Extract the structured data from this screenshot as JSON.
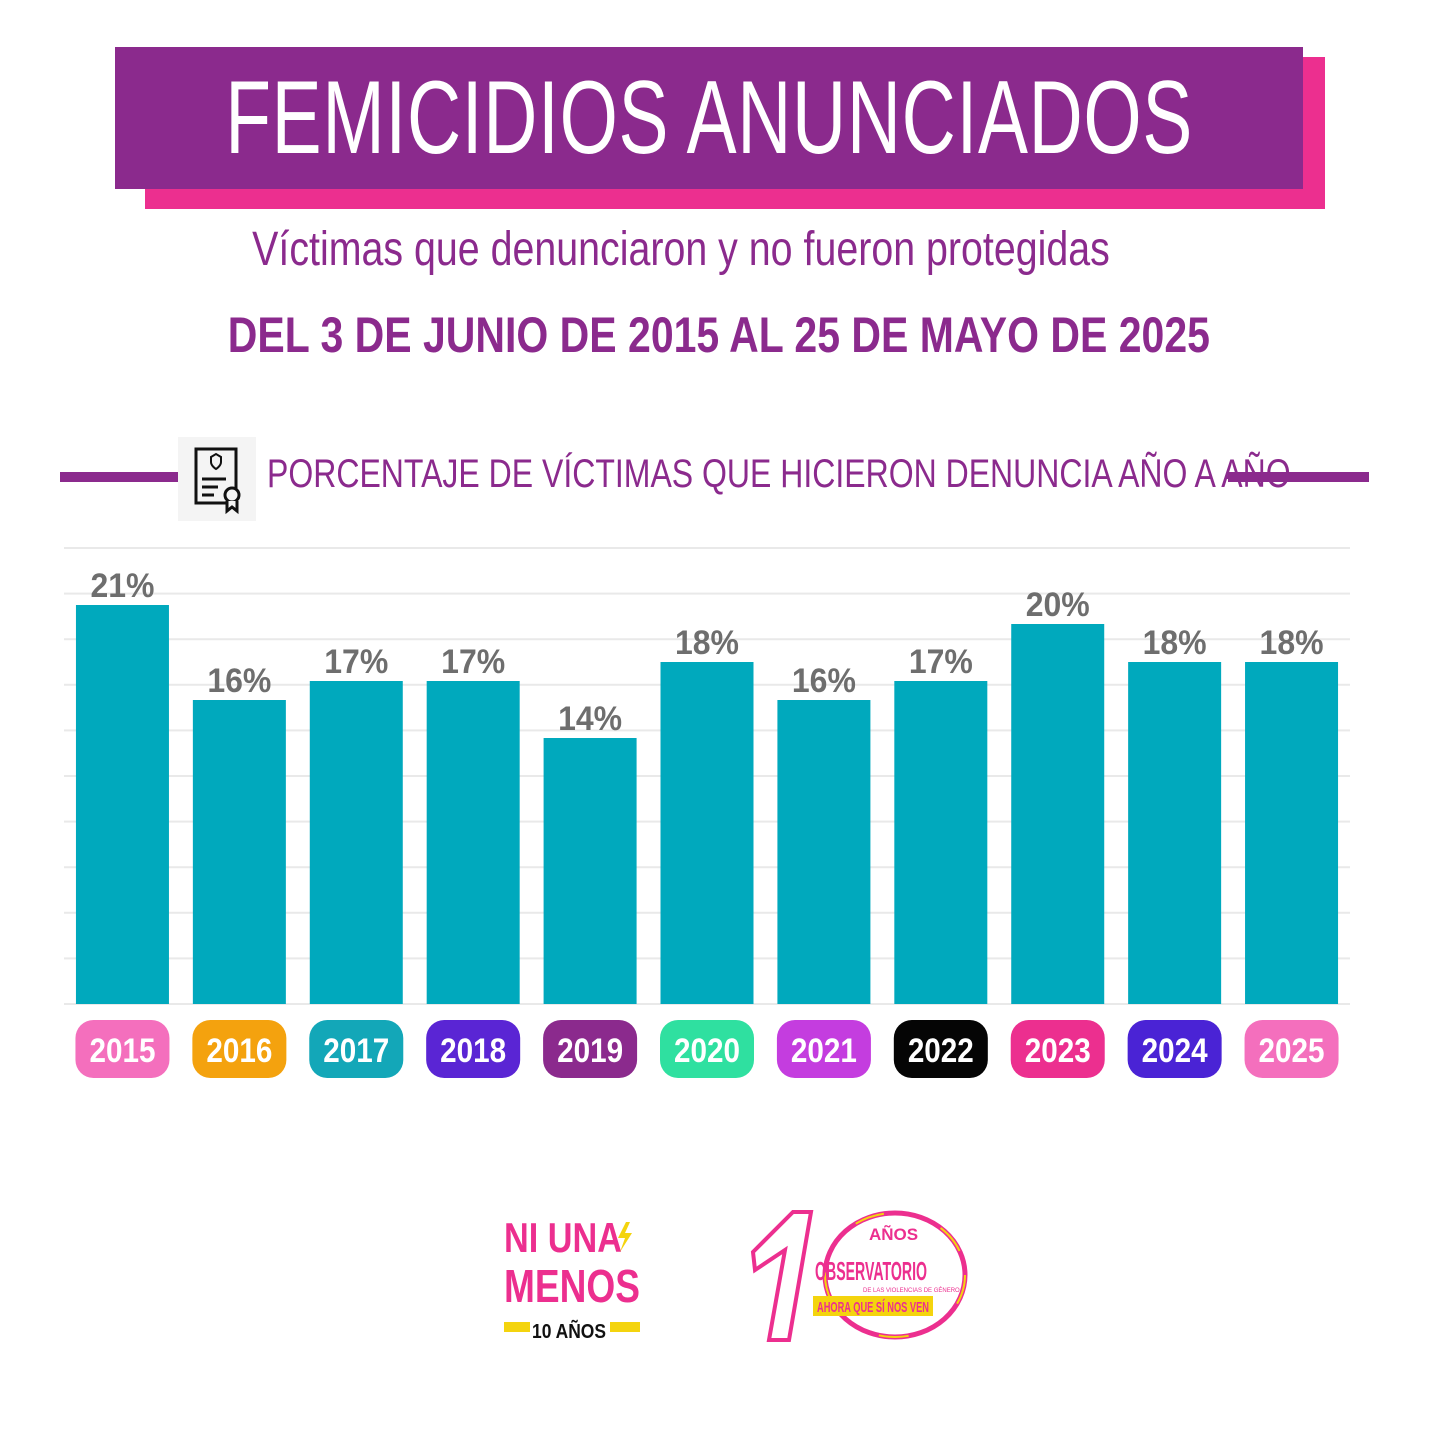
{
  "header": {
    "title": "FEMICIDIOS ANUNCIADOS",
    "subtitle": "Víctimas que denunciaron y no fueron protegidas",
    "date_range": "DEL 3 DE JUNIO DE 2015 AL 25 DE MAYO DE 2025"
  },
  "section": {
    "title": "PORCENTAJE DE VÍCTIMAS QUE HICIERON DENUNCIA AÑO A AÑO",
    "icon": "certificate-document-icon"
  },
  "chart_data": {
    "type": "bar",
    "categories": [
      "2015",
      "2016",
      "2017",
      "2018",
      "2019",
      "2020",
      "2021",
      "2022",
      "2023",
      "2024",
      "2025"
    ],
    "values": [
      21,
      16,
      17,
      17,
      14,
      18,
      16,
      17,
      20,
      18,
      18
    ],
    "value_labels": [
      "21%",
      "16%",
      "17%",
      "17%",
      "14%",
      "18%",
      "16%",
      "17%",
      "20%",
      "18%",
      "18%"
    ],
    "ylim": [
      0,
      24
    ],
    "grid": true,
    "bar_color": "#00a9bd",
    "label_color": "#6e6e6e",
    "category_badge_colors": [
      "#f46fbd",
      "#f4a20e",
      "#13a7b8",
      "#5a25d4",
      "#8b2a8d",
      "#2fe0a0",
      "#c43ddf",
      "#050505",
      "#ec2f8f",
      "#4a23d5",
      "#f46fbd"
    ]
  },
  "footer": {
    "logo_left": {
      "line1": "NI UNA",
      "line2": "MENOS",
      "line3": "10 AÑOS"
    },
    "logo_right": {
      "years": "AÑOS",
      "name": "OBSERVATORIO",
      "small": "DE LAS VIOLENCIAS DE GÉNERO",
      "tagline": "AHORA QUE SÍ NOS VEN"
    }
  },
  "colors": {
    "purple": "#8b2a8d",
    "pink": "#ec2f8f",
    "teal": "#00a9bd"
  }
}
